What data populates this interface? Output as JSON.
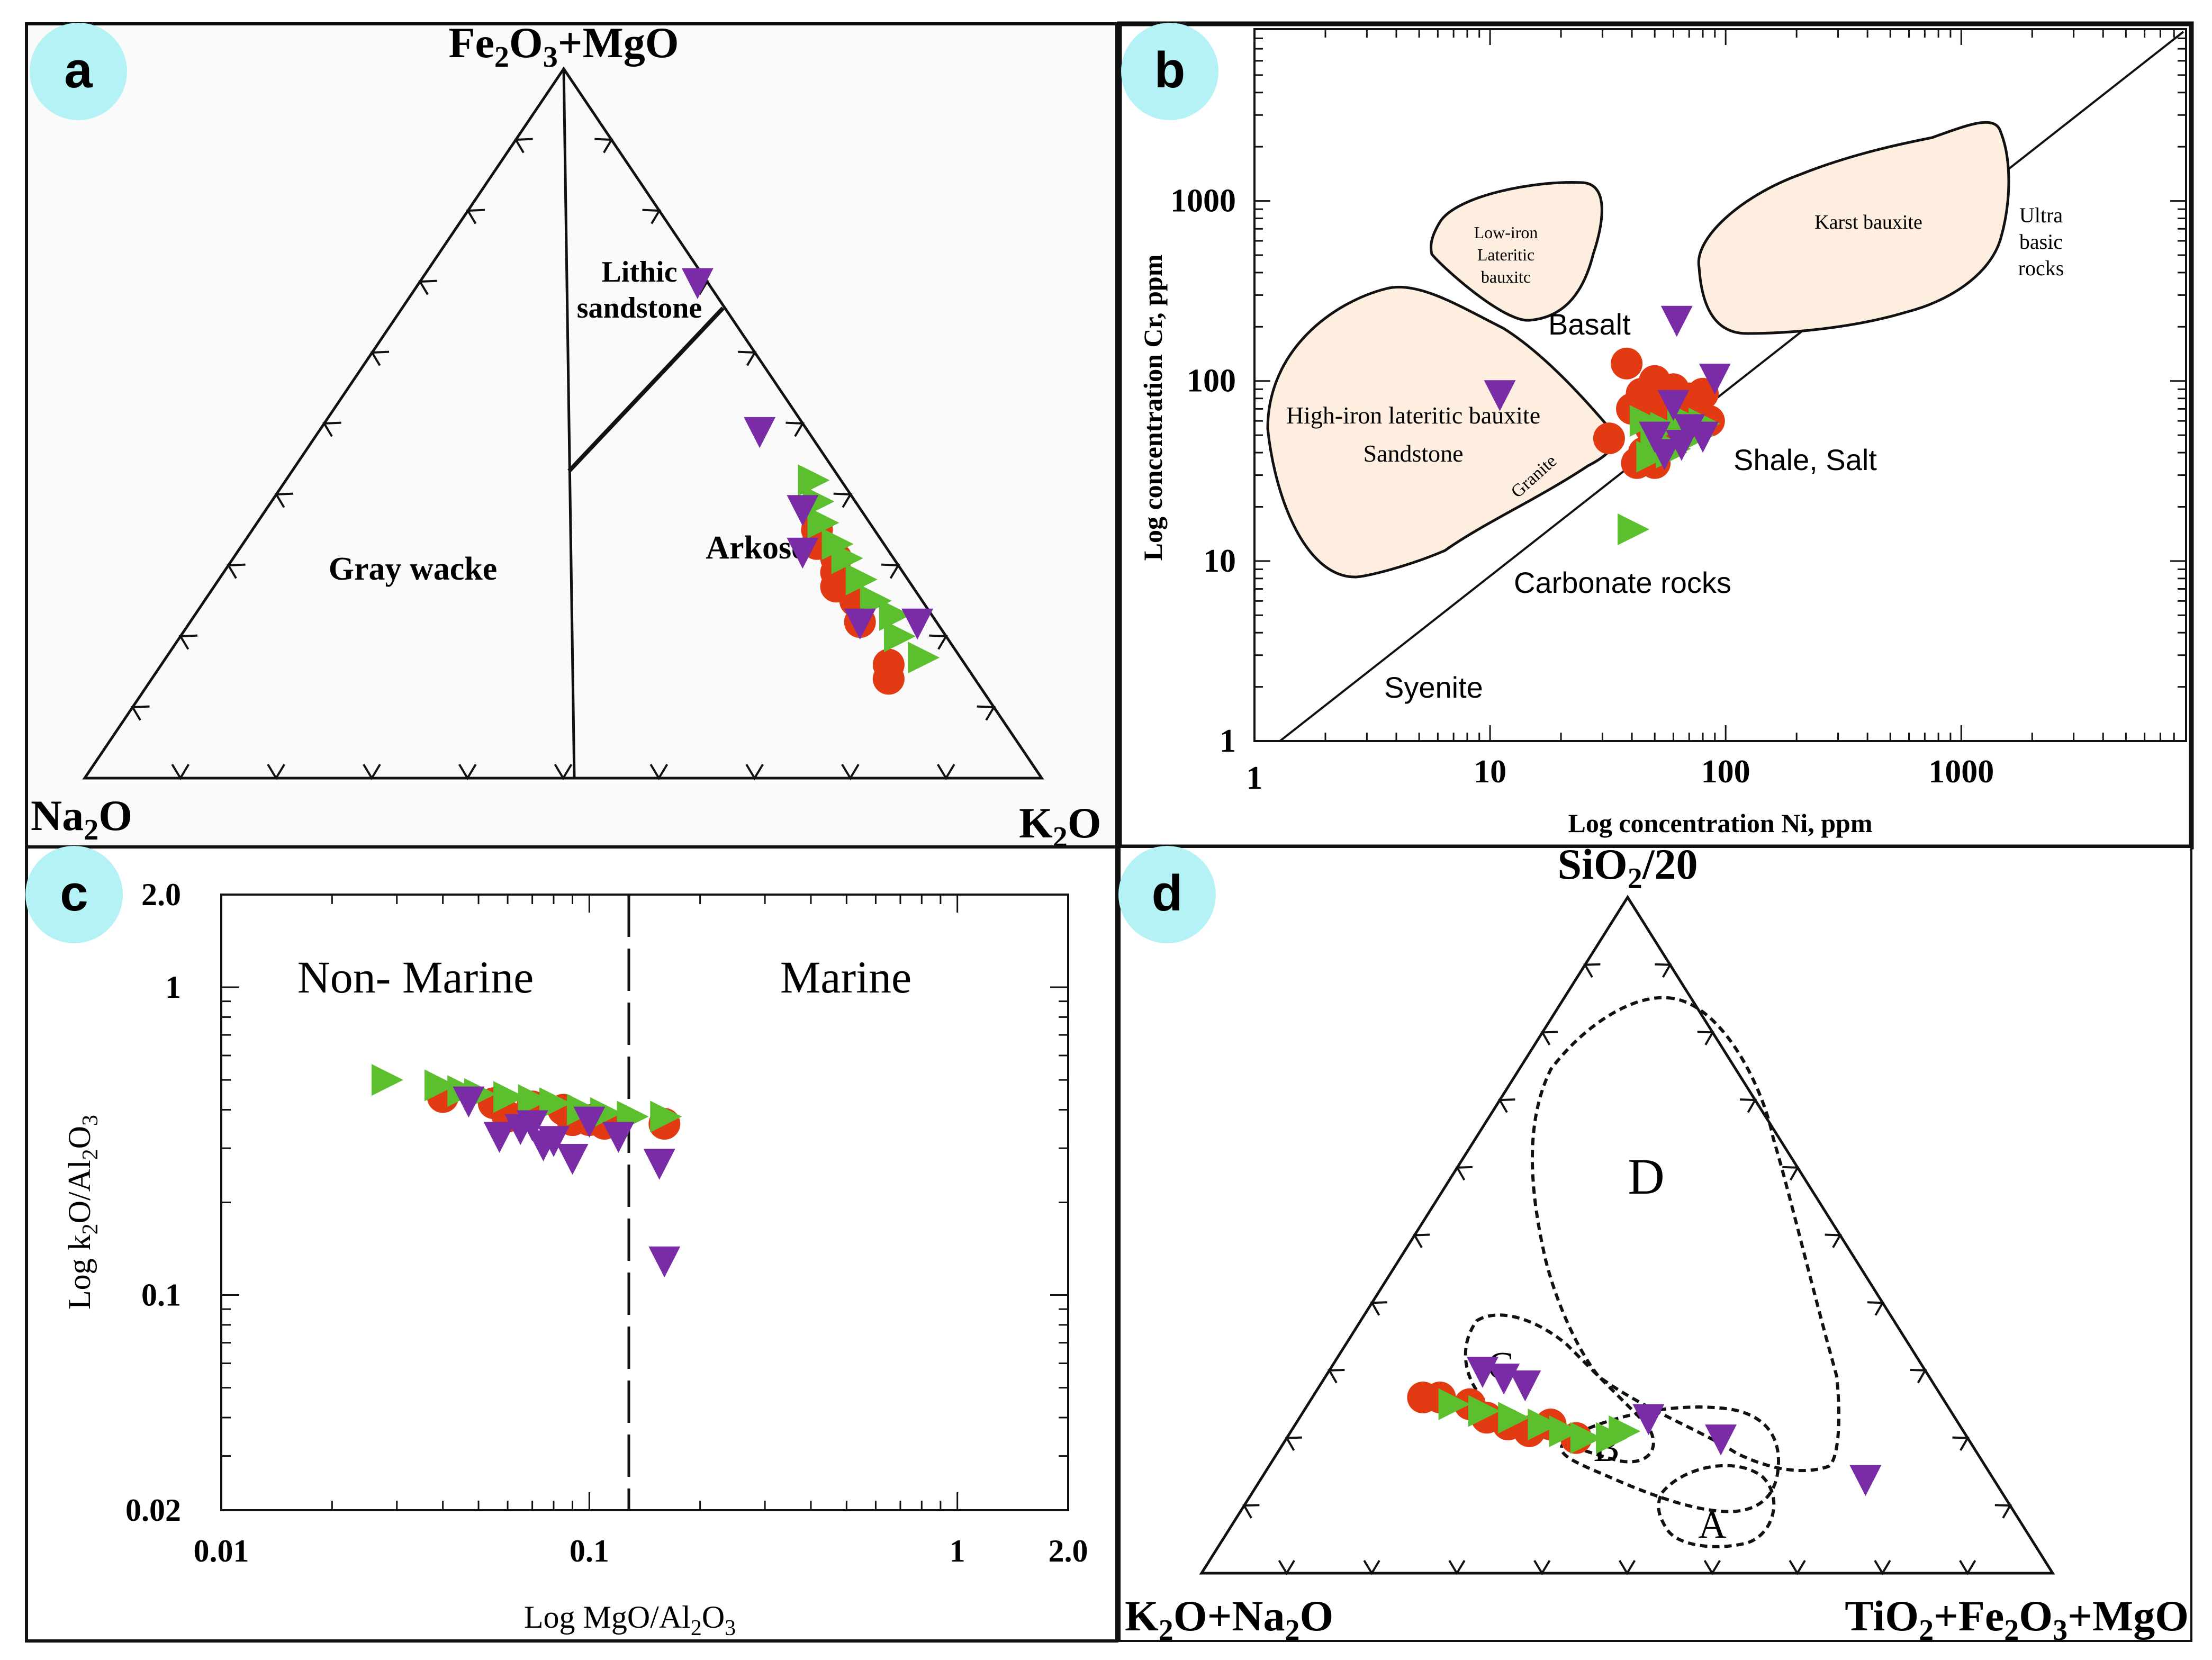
{
  "colors": {
    "red": "#e23a12",
    "green": "#5cbf2e",
    "purple": "#7a2ca6",
    "badge": "#b5f2f6",
    "field_fill": "#fdeee0",
    "frame": "#111111"
  },
  "panels": {
    "a": {
      "badge": "a",
      "apex_top": "Fe2O3+MgO",
      "apex_left": "Na2O",
      "apex_right": "K2O",
      "fields": [
        "Lithic",
        "sandstone",
        "Arkose",
        "Gray wacke"
      ]
    },
    "b": {
      "badge": "b",
      "xlabel": "Log concentration Ni, ppm",
      "ylabel": "Log concentration Cr, ppm",
      "xticks": [
        "1",
        "10",
        "100",
        "1000"
      ],
      "yticks": [
        "1",
        "10",
        "100",
        "1000"
      ],
      "fields": {
        "low_iron": [
          "Low-iron",
          "Lateritic",
          "bauxitc"
        ],
        "high_iron": [
          "High-iron lateritic bauxite",
          "Sandstone"
        ],
        "granite": "Granite",
        "karst": "Karst bauxite",
        "ultra": [
          "Ultra",
          "basic",
          "rocks"
        ]
      },
      "annotations": [
        "Basalt",
        "Shale, Salt",
        "Carbonate rocks",
        "Syenite"
      ]
    },
    "c": {
      "badge": "c",
      "xlabel": "Log MgO/Al2O3",
      "ylabel": "Log k2O/Al2O3",
      "xticks": [
        "0.01",
        "0.1",
        "1",
        "2.0"
      ],
      "yticks": [
        "0.02",
        "0.1",
        "1",
        "2.0"
      ],
      "regions": [
        "Non- Marine",
        "Marine"
      ]
    },
    "d": {
      "badge": "d",
      "apex_top": "SiO2/20",
      "apex_left": "K2O+Na2O",
      "apex_right": "TiO2+Fe2O3+MgO",
      "fields": [
        "D",
        "C",
        "B",
        "A"
      ]
    }
  },
  "chart_data": [
    {
      "panel": "a",
      "type": "scatter",
      "subtype": "ternary",
      "components": [
        "Fe2O3+MgO",
        "Na2O",
        "K2O"
      ],
      "series": [
        {
          "name": "red circles",
          "marker": "circle",
          "points": [
            [
              0.35,
              0.06,
              0.59
            ],
            [
              0.33,
              0.07,
              0.6
            ],
            [
              0.31,
              0.06,
              0.63
            ],
            [
              0.29,
              0.07,
              0.64
            ],
            [
              0.27,
              0.08,
              0.65
            ],
            [
              0.25,
              0.07,
              0.68
            ],
            [
              0.22,
              0.08,
              0.7
            ],
            [
              0.16,
              0.08,
              0.76
            ],
            [
              0.14,
              0.09,
              0.77
            ]
          ]
        },
        {
          "name": "green triangles",
          "marker": "triangle-right",
          "points": [
            [
              0.42,
              0.03,
              0.55
            ],
            [
              0.39,
              0.04,
              0.57
            ],
            [
              0.36,
              0.05,
              0.59
            ],
            [
              0.33,
              0.05,
              0.62
            ],
            [
              0.31,
              0.05,
              0.64
            ],
            [
              0.28,
              0.05,
              0.67
            ],
            [
              0.25,
              0.05,
              0.7
            ],
            [
              0.23,
              0.04,
              0.73
            ],
            [
              0.2,
              0.05,
              0.75
            ],
            [
              0.17,
              0.04,
              0.79
            ]
          ]
        },
        {
          "name": "purple triangles",
          "marker": "triangle-down",
          "points": [
            [
              0.7,
              0.01,
              0.29
            ],
            [
              0.49,
              0.05,
              0.46
            ],
            [
              0.38,
              0.06,
              0.56
            ],
            [
              0.32,
              0.09,
              0.59
            ],
            [
              0.22,
              0.08,
              0.7
            ],
            [
              0.22,
              0.02,
              0.76
            ]
          ]
        }
      ]
    },
    {
      "panel": "b",
      "type": "scatter",
      "xscale": "log",
      "yscale": "log",
      "xlabel": "Log concentration Ni, ppm",
      "ylabel": "Log concentration Cr, ppm",
      "xlim": [
        1,
        9000
      ],
      "ylim": [
        1,
        9000
      ],
      "series": [
        {
          "name": "red circles",
          "marker": "circle",
          "points": [
            [
              38,
              125
            ],
            [
              50,
              100
            ],
            [
              44,
              85
            ],
            [
              60,
              90
            ],
            [
              40,
              70
            ],
            [
              55,
              75
            ],
            [
              70,
              80
            ],
            [
              80,
              85
            ],
            [
              52,
              65
            ],
            [
              65,
              70
            ],
            [
              75,
              75
            ],
            [
              32,
              48
            ],
            [
              48,
              55
            ],
            [
              58,
              60
            ],
            [
              68,
              65
            ],
            [
              85,
              60
            ],
            [
              45,
              40
            ],
            [
              55,
              45
            ],
            [
              42,
              35
            ],
            [
              50,
              35
            ]
          ]
        },
        {
          "name": "green triangles",
          "marker": "triangle-right",
          "points": [
            [
              45,
              60
            ],
            [
              55,
              55
            ],
            [
              65,
              62
            ],
            [
              75,
              50
            ],
            [
              50,
              45
            ],
            [
              60,
              42
            ],
            [
              70,
              55
            ],
            [
              80,
              58
            ],
            [
              48,
              38
            ],
            [
              58,
              40
            ],
            [
              40,
              15
            ]
          ]
        },
        {
          "name": "purple triangles",
          "marker": "triangle-down",
          "points": [
            [
              62,
              220
            ],
            [
              11,
              85
            ],
            [
              90,
              105
            ],
            [
              60,
              75
            ],
            [
              70,
              55
            ],
            [
              50,
              50
            ],
            [
              80,
              50
            ],
            [
              55,
              40
            ],
            [
              65,
              45
            ]
          ]
        }
      ]
    },
    {
      "panel": "c",
      "type": "scatter",
      "xscale": "log",
      "yscale": "log",
      "xlabel": "Log MgO/Al2O3",
      "ylabel": "Log k2O/Al2O3",
      "xlim": [
        0.01,
        2.0
      ],
      "ylim": [
        0.02,
        2.0
      ],
      "divider_x": 0.13,
      "series": [
        {
          "name": "red circles",
          "marker": "circle",
          "points": [
            [
              0.04,
              0.44
            ],
            [
              0.055,
              0.42
            ],
            [
              0.06,
              0.38
            ],
            [
              0.07,
              0.41
            ],
            [
              0.085,
              0.4
            ],
            [
              0.09,
              0.37
            ],
            [
              0.1,
              0.37
            ],
            [
              0.11,
              0.36
            ],
            [
              0.16,
              0.36
            ]
          ]
        },
        {
          "name": "green triangles",
          "marker": "triangle-right",
          "points": [
            [
              0.028,
              0.5
            ],
            [
              0.039,
              0.48
            ],
            [
              0.045,
              0.46
            ],
            [
              0.05,
              0.45
            ],
            [
              0.06,
              0.44
            ],
            [
              0.07,
              0.43
            ],
            [
              0.08,
              0.42
            ],
            [
              0.095,
              0.4
            ],
            [
              0.11,
              0.39
            ],
            [
              0.13,
              0.38
            ],
            [
              0.16,
              0.38
            ]
          ]
        },
        {
          "name": "purple triangles",
          "marker": "triangle-down",
          "points": [
            [
              0.047,
              0.43
            ],
            [
              0.057,
              0.33
            ],
            [
              0.065,
              0.35
            ],
            [
              0.07,
              0.36
            ],
            [
              0.075,
              0.31
            ],
            [
              0.08,
              0.32
            ],
            [
              0.09,
              0.28
            ],
            [
              0.1,
              0.37
            ],
            [
              0.12,
              0.33
            ],
            [
              0.155,
              0.27
            ],
            [
              0.16,
              0.13
            ]
          ]
        }
      ]
    },
    {
      "panel": "d",
      "type": "scatter",
      "subtype": "ternary",
      "components": [
        "SiO2/20",
        "K2O+Na2O",
        "TiO2+Fe2O3+MgO"
      ],
      "series": [
        {
          "name": "red circles",
          "marker": "circle",
          "points": [
            [
              0.26,
              0.61,
              0.13
            ],
            [
              0.26,
              0.59,
              0.15
            ],
            [
              0.25,
              0.56,
              0.19
            ],
            [
              0.23,
              0.55,
              0.22
            ],
            [
              0.22,
              0.53,
              0.25
            ],
            [
              0.21,
              0.51,
              0.28
            ],
            [
              0.22,
              0.48,
              0.3
            ],
            [
              0.2,
              0.46,
              0.34
            ]
          ]
        },
        {
          "name": "green triangles",
          "marker": "triangle-right",
          "points": [
            [
              0.25,
              0.58,
              0.17
            ],
            [
              0.24,
              0.55,
              0.21
            ],
            [
              0.23,
              0.52,
              0.25
            ],
            [
              0.22,
              0.49,
              0.29
            ],
            [
              0.21,
              0.47,
              0.32
            ],
            [
              0.2,
              0.45,
              0.35
            ],
            [
              0.2,
              0.42,
              0.38
            ],
            [
              0.21,
              0.4,
              0.39
            ]
          ]
        },
        {
          "name": "purple triangles",
          "marker": "triangle-down",
          "points": [
            [
              0.3,
              0.52,
              0.18
            ],
            [
              0.29,
              0.5,
              0.21
            ],
            [
              0.28,
              0.48,
              0.24
            ],
            [
              0.23,
              0.36,
              0.41
            ],
            [
              0.2,
              0.29,
              0.51
            ],
            [
              0.14,
              0.15,
              0.71
            ]
          ]
        }
      ]
    }
  ]
}
